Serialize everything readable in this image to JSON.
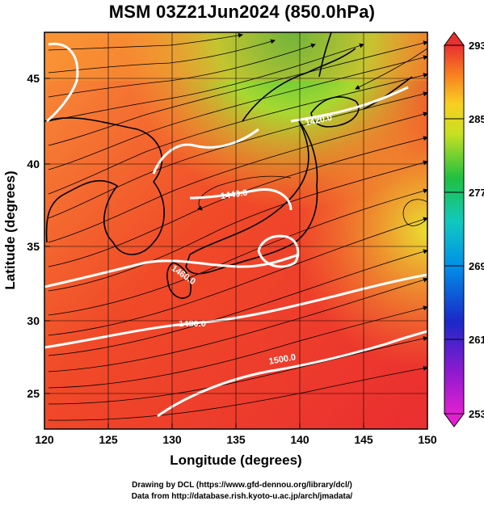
{
  "title": "MSM 03Z21Jun2024 (850.0hPa)",
  "x_axis": {
    "label": "Longitude (degrees)",
    "ticks": [
      "120",
      "125",
      "130",
      "135",
      "140",
      "145",
      "150"
    ],
    "range": [
      120,
      150
    ]
  },
  "y_axis": {
    "label": "Latitude  (degrees)",
    "ticks": [
      "25",
      "30",
      "35",
      "40",
      "45"
    ],
    "range": [
      22.4,
      47.6
    ]
  },
  "colorbar": {
    "labels": [
      "293",
      "285",
      "277",
      "269",
      "261",
      "253"
    ],
    "range": [
      253,
      293
    ]
  },
  "contours": [
    {
      "label": "1420.0",
      "value": 1420
    },
    {
      "label": "1440.0",
      "value": 1440
    },
    {
      "label": "1460.0",
      "value": 1460
    },
    {
      "label": "1480.0",
      "value": 1480
    },
    {
      "label": "1500.0",
      "value": 1500
    }
  ],
  "footer": {
    "line1": "Drawing by DCL (https://www.gfd-dennou.org/library/dcl/)",
    "line2": "Data from http://database.rish.kyoto-u.ac.jp/arch/jmadata/"
  }
}
